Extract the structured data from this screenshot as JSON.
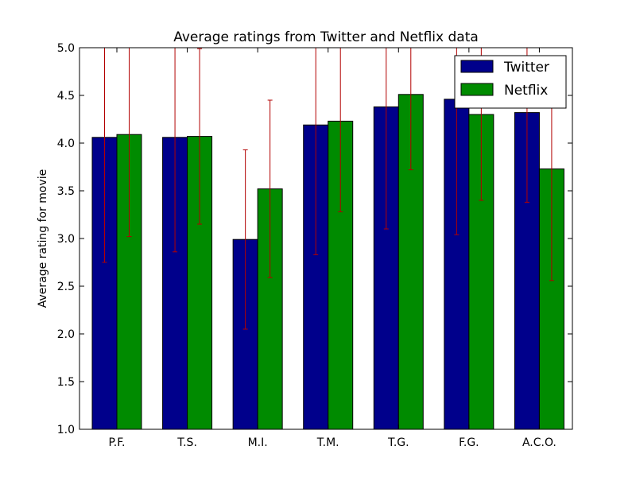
{
  "chart_data": {
    "type": "bar",
    "title": "Average ratings from Twitter and Netflix data",
    "xlabel": "",
    "ylabel": "Average rating for movie",
    "categories": [
      "P.F.",
      "T.S.",
      "M.I.",
      "T.M.",
      "T.G.",
      "F.G.",
      "A.C.O."
    ],
    "ylim": [
      1.0,
      5.0
    ],
    "yticks": [
      "1.0",
      "1.5",
      "2.0",
      "2.5",
      "3.0",
      "3.5",
      "4.0",
      "4.5",
      "5.0"
    ],
    "grid": false,
    "legend_position": "top-right",
    "series": [
      {
        "name": "Twitter",
        "color": "#00008b",
        "values": [
          4.06,
          4.06,
          2.99,
          4.19,
          4.38,
          4.46,
          4.32
        ],
        "error": [
          1.31,
          1.2,
          0.94,
          1.36,
          1.28,
          1.42,
          0.94
        ]
      },
      {
        "name": "Netflix",
        "color": "#008b00",
        "values": [
          4.09,
          4.07,
          3.52,
          4.23,
          4.51,
          4.3,
          3.73
        ],
        "error": [
          1.07,
          0.92,
          0.93,
          0.95,
          0.79,
          0.9,
          1.17
        ]
      }
    ],
    "error_color": "#b20000"
  }
}
